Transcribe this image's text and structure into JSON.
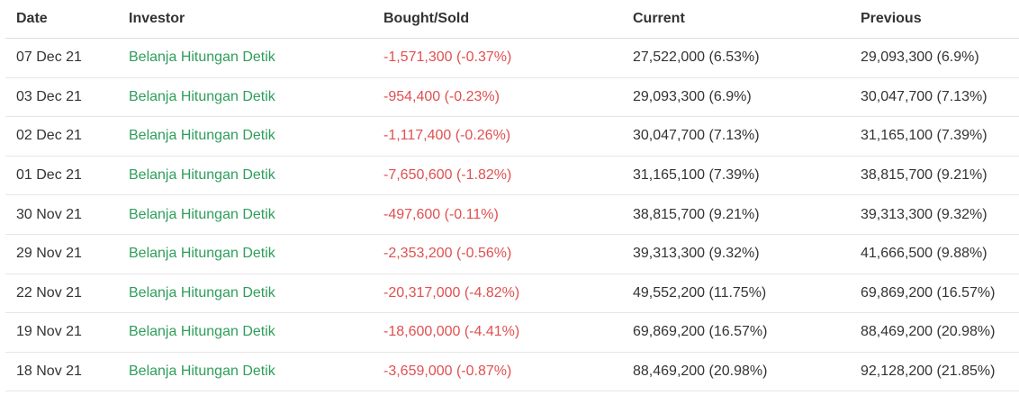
{
  "table": {
    "headers": {
      "date": "Date",
      "investor": "Investor",
      "bought_sold": "Bought/Sold",
      "current": "Current",
      "previous": "Previous"
    },
    "rows": [
      {
        "date": "07 Dec 21",
        "investor": "Belanja Hitungan Detik",
        "bought_sold": "-1,571,300 (-0.37%)",
        "current": "27,522,000 (6.53%)",
        "previous": "29,093,300 (6.9%)"
      },
      {
        "date": "03 Dec 21",
        "investor": "Belanja Hitungan Detik",
        "bought_sold": "-954,400 (-0.23%)",
        "current": "29,093,300 (6.9%)",
        "previous": "30,047,700 (7.13%)"
      },
      {
        "date": "02 Dec 21",
        "investor": "Belanja Hitungan Detik",
        "bought_sold": "-1,117,400 (-0.26%)",
        "current": "30,047,700 (7.13%)",
        "previous": "31,165,100 (7.39%)"
      },
      {
        "date": "01 Dec 21",
        "investor": "Belanja Hitungan Detik",
        "bought_sold": "-7,650,600 (-1.82%)",
        "current": "31,165,100 (7.39%)",
        "previous": "38,815,700 (9.21%)"
      },
      {
        "date": "30 Nov 21",
        "investor": "Belanja Hitungan Detik",
        "bought_sold": "-497,600 (-0.11%)",
        "current": "38,815,700 (9.21%)",
        "previous": "39,313,300 (9.32%)"
      },
      {
        "date": "29 Nov 21",
        "investor": "Belanja Hitungan Detik",
        "bought_sold": "-2,353,200 (-0.56%)",
        "current": "39,313,300 (9.32%)",
        "previous": "41,666,500 (9.88%)"
      },
      {
        "date": "22 Nov 21",
        "investor": "Belanja Hitungan Detik",
        "bought_sold": "-20,317,000 (-4.82%)",
        "current": "49,552,200 (11.75%)",
        "previous": "69,869,200 (16.57%)"
      },
      {
        "date": "19 Nov 21",
        "investor": "Belanja Hitungan Detik",
        "bought_sold": "-18,600,000 (-4.41%)",
        "current": "69,869,200 (16.57%)",
        "previous": "88,469,200 (20.98%)"
      },
      {
        "date": "18 Nov 21",
        "investor": "Belanja Hitungan Detik",
        "bought_sold": "-3,659,000 (-0.87%)",
        "current": "88,469,200 (20.98%)",
        "previous": "92,128,200 (21.85%)"
      }
    ]
  },
  "colors": {
    "investor_link": "#2e9e5b",
    "sold_value": "#e05050",
    "text": "#333333",
    "divider": "#e6e6e6"
  }
}
